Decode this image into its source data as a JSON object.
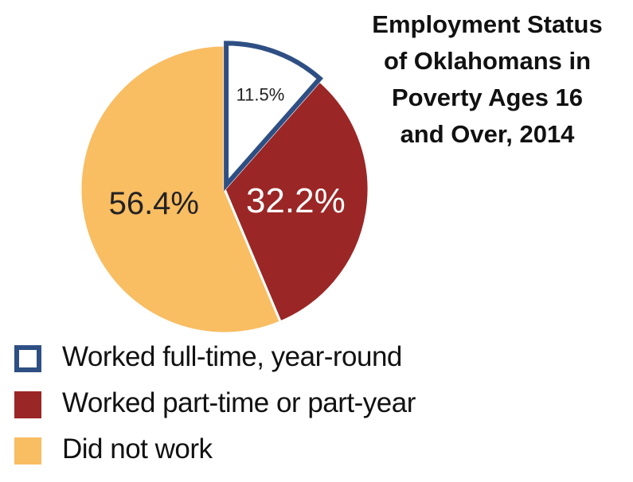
{
  "chart_data": {
    "type": "pie",
    "title_lines": [
      "Employment Status",
      "of Oklahomans in",
      "Poverty Ages 16",
      "and Over, 2014"
    ],
    "slices": [
      {
        "label": "Worked full-time, year-round",
        "value": 11.5,
        "value_label": "11.5%",
        "fill": "#ffffff",
        "stroke": "#2e4f84",
        "text_color": "#222222"
      },
      {
        "label": "Worked part-time or part-year",
        "value": 32.2,
        "value_label": "32.2%",
        "fill": "#9b2626",
        "stroke": "#ffffff",
        "text_color": "#ffffff"
      },
      {
        "label": "Did not work",
        "value": 56.4,
        "value_label": "56.4%",
        "fill": "#f9bd62",
        "stroke": "#ffffff",
        "text_color": "#222222"
      }
    ],
    "legend_position": "bottom-left"
  }
}
